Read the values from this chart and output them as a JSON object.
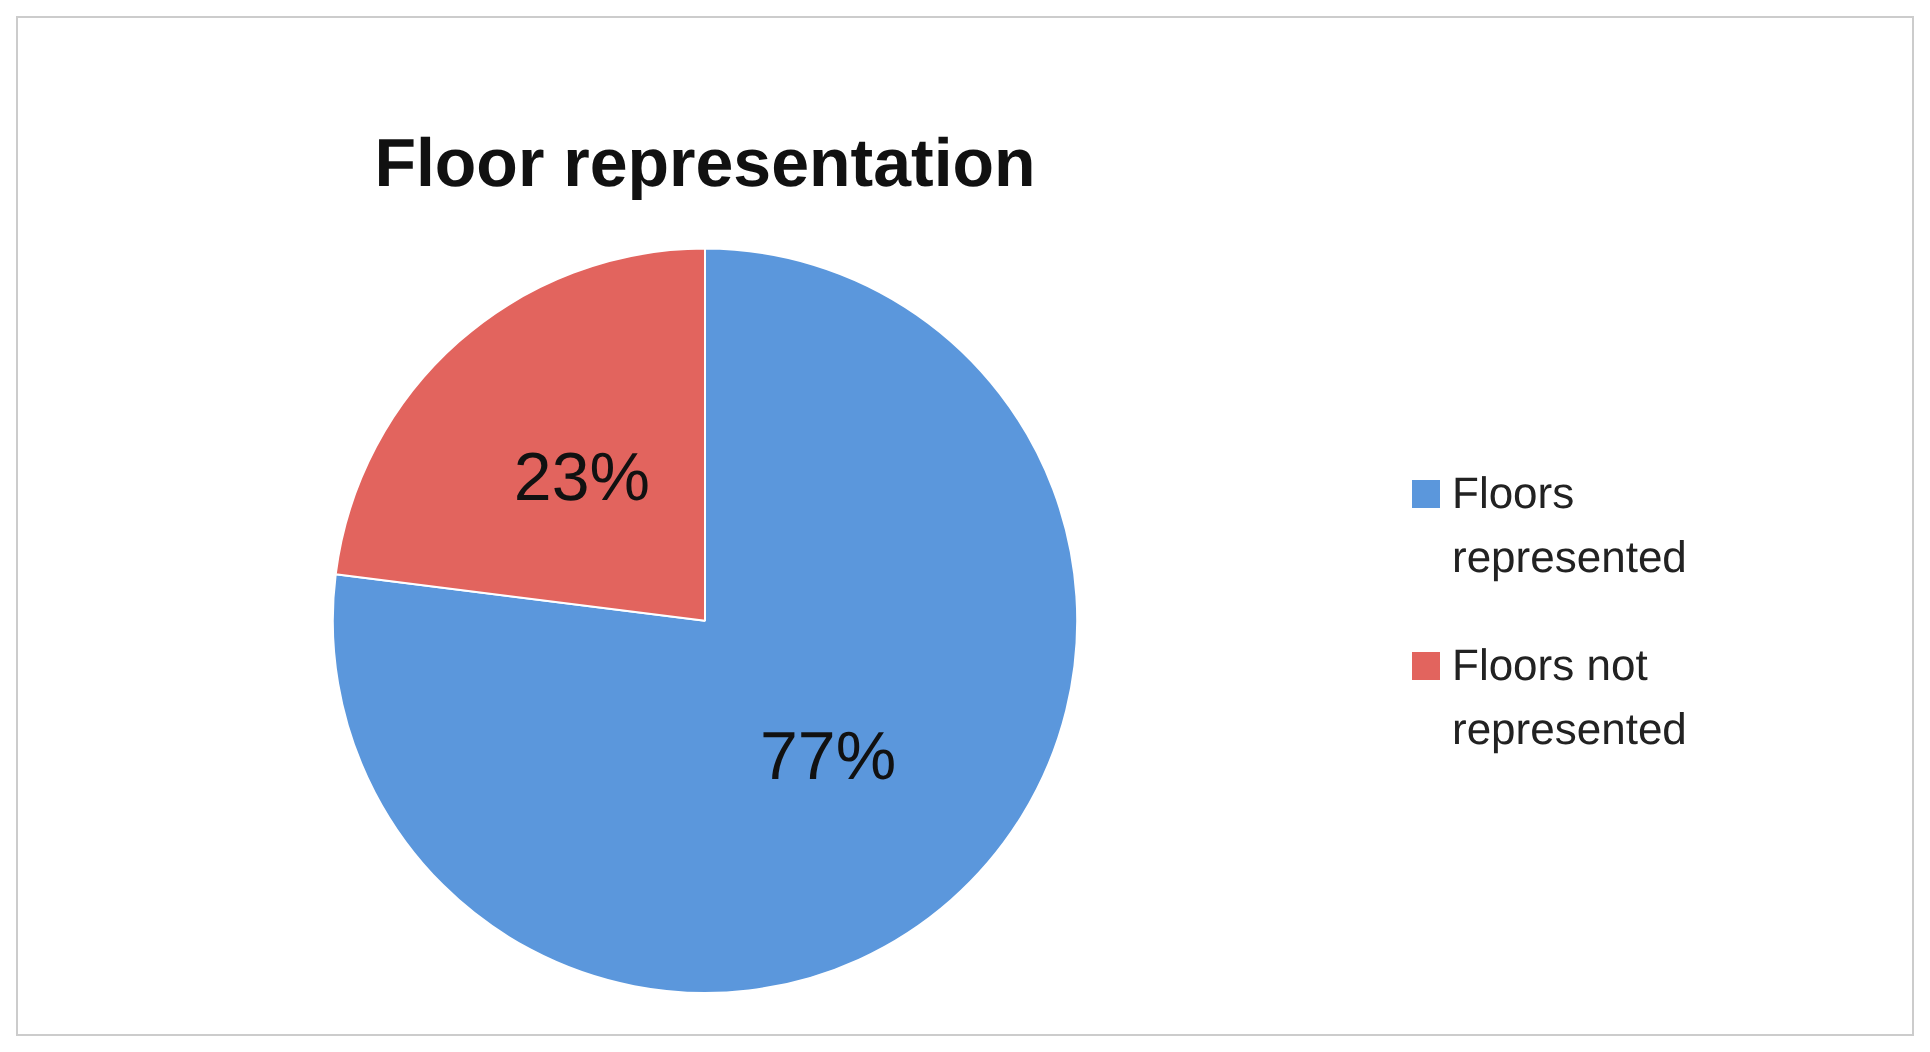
{
  "chart_data": {
    "type": "pie",
    "title": "Floor representation",
    "categories": [
      "Floors represented",
      "Floors not represented"
    ],
    "values": [
      77,
      23
    ],
    "colors": [
      "#5b97dc",
      "#e2645e"
    ],
    "value_labels": [
      "77%",
      "23%"
    ],
    "legend": "right"
  }
}
